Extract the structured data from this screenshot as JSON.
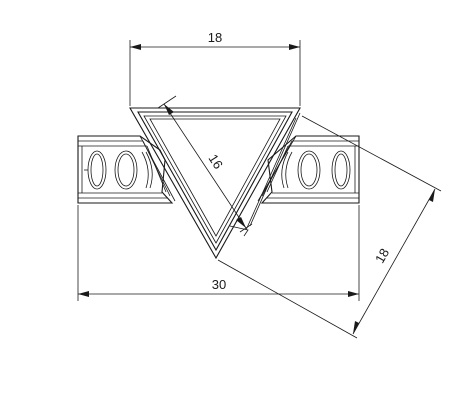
{
  "drawing": {
    "dimensions": {
      "top_width": "18",
      "inner_edge": "16",
      "overall_width": "30",
      "side_edge": "18"
    },
    "line_color": "#1a1a1a",
    "background": "#ffffff"
  }
}
